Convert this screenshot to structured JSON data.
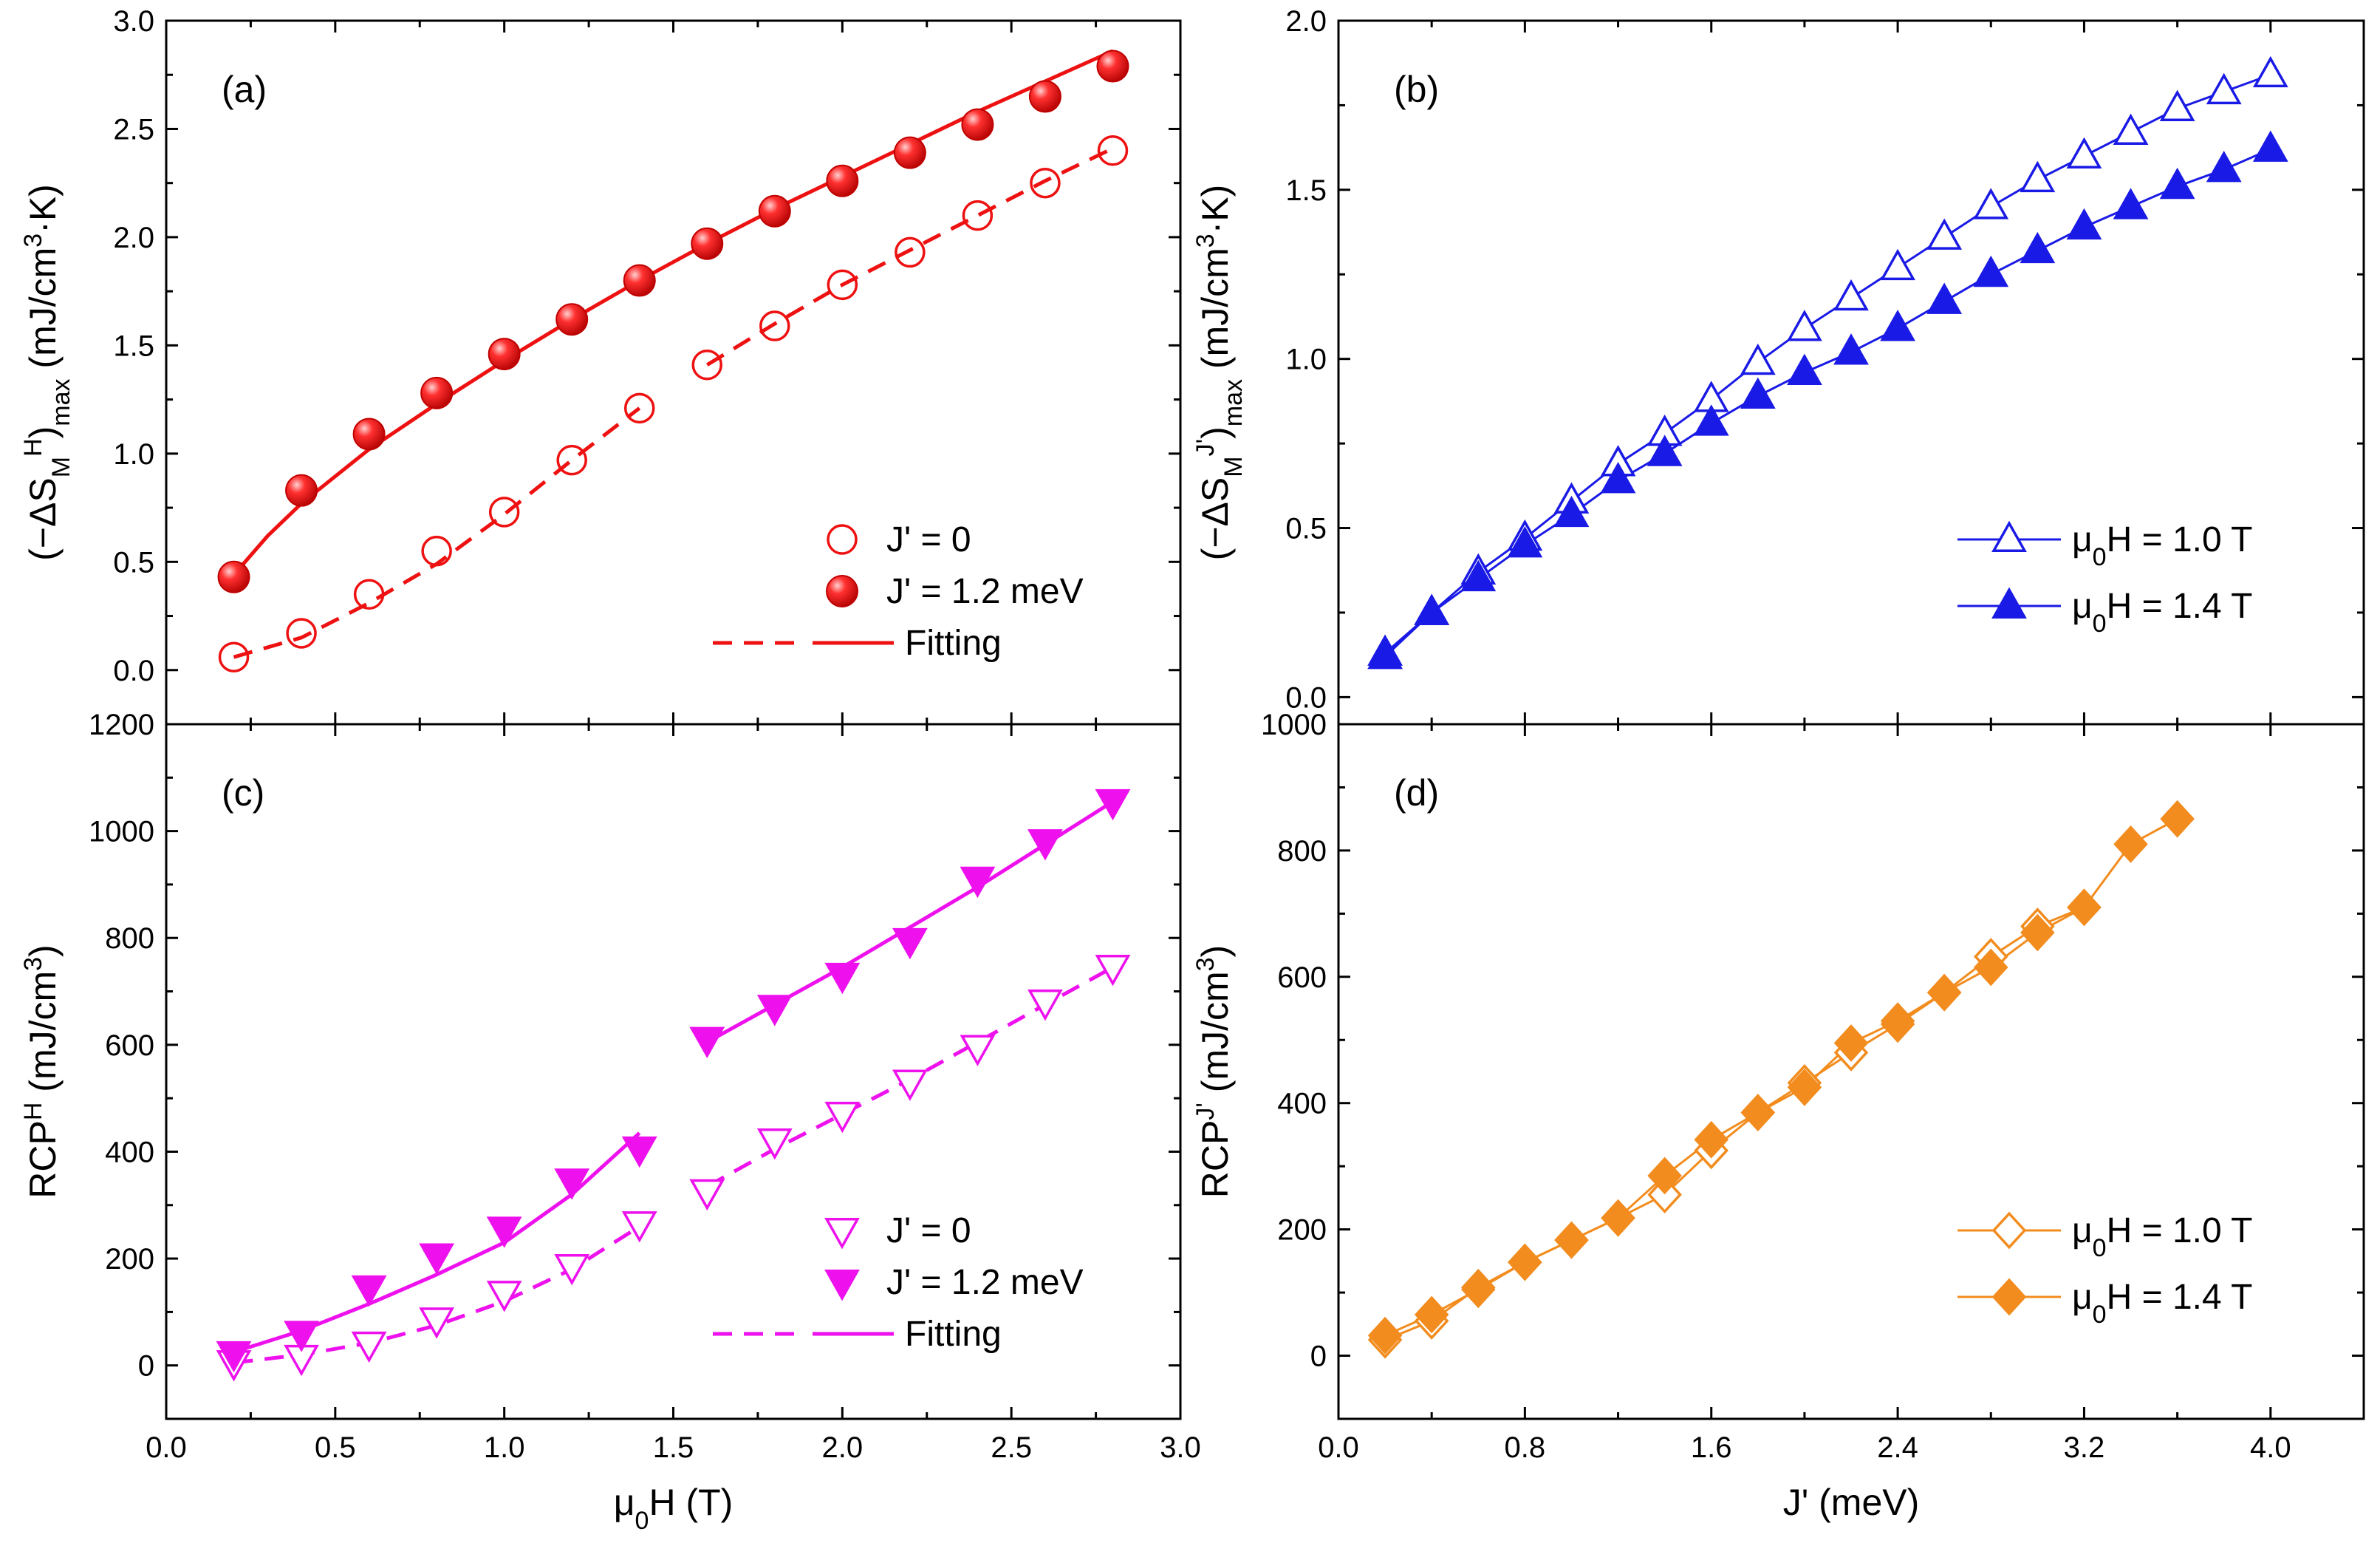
{
  "chart_data": [
    {
      "id": "a",
      "type": "scatter",
      "panel_label": "(a)",
      "ylabel_parts": [
        "(−ΔS",
        "M",
        "H",
        ")",
        "max",
        " (mJ/cm",
        "3",
        "·K)"
      ],
      "xlabel": "",
      "xlim": [
        0,
        3
      ],
      "ylim": [
        -0.25,
        3.0
      ],
      "xticks": [
        "0.0",
        "0.5",
        "1.0",
        "1.5",
        "2.0",
        "2.5",
        "3.0"
      ],
      "yticks": [
        "0.0",
        "0.5",
        "1.0",
        "1.5",
        "2.0",
        "2.5",
        "3.0"
      ],
      "yticks_values": [
        0,
        0.5,
        1.0,
        1.5,
        2.0,
        2.5,
        3.0
      ],
      "color": "#ee1111",
      "series": [
        {
          "name": "J' = 0",
          "marker": "circle-open",
          "x": [
            0.2,
            0.4,
            0.6,
            0.8,
            1.0,
            1.2,
            1.4,
            1.6,
            1.8,
            2.0,
            2.2,
            2.4,
            2.6,
            2.8
          ],
          "y": [
            0.06,
            0.17,
            0.35,
            0.55,
            0.73,
            0.97,
            1.21,
            1.41,
            1.59,
            1.78,
            1.93,
            2.1,
            2.25,
            2.4
          ]
        },
        {
          "name": "J' = 1.2 meV",
          "marker": "sphere",
          "x": [
            0.2,
            0.4,
            0.6,
            0.8,
            1.0,
            1.2,
            1.4,
            1.6,
            1.8,
            2.0,
            2.2,
            2.4,
            2.6,
            2.8
          ],
          "y": [
            0.43,
            0.83,
            1.09,
            1.28,
            1.46,
            1.62,
            1.8,
            1.97,
            2.12,
            2.26,
            2.39,
            2.52,
            2.65,
            2.79
          ]
        }
      ],
      "fits": [
        {
          "style": "dashed",
          "segments": [
            [
              [
                0.2,
                0.06
              ],
              [
                0.4,
                0.15
              ],
              [
                0.6,
                0.31
              ],
              [
                0.8,
                0.49
              ],
              [
                1.0,
                0.72
              ],
              [
                1.2,
                0.97
              ],
              [
                1.4,
                1.21
              ]
            ],
            [
              [
                1.6,
                1.41
              ],
              [
                1.8,
                1.6
              ],
              [
                2.0,
                1.78
              ],
              [
                2.2,
                1.94
              ],
              [
                2.4,
                2.1
              ],
              [
                2.6,
                2.26
              ],
              [
                2.8,
                2.41
              ]
            ]
          ]
        },
        {
          "style": "solid",
          "segments": [
            [
              [
                0.2,
                0.44
              ],
              [
                0.3,
                0.62
              ],
              [
                0.4,
                0.77
              ],
              [
                0.6,
                1.02
              ],
              [
                0.8,
                1.23
              ],
              [
                1.0,
                1.43
              ],
              [
                1.2,
                1.62
              ],
              [
                1.4,
                1.8
              ],
              [
                1.6,
                1.97
              ],
              [
                1.8,
                2.13
              ],
              [
                2.0,
                2.28
              ],
              [
                2.2,
                2.43
              ],
              [
                2.4,
                2.58
              ],
              [
                2.6,
                2.72
              ],
              [
                2.8,
                2.86
              ]
            ]
          ]
        }
      ],
      "legend": [
        {
          "label": "J' = 0",
          "kind": "marker",
          "marker": "circle-open"
        },
        {
          "label": "J' = 1.2 meV",
          "kind": "marker",
          "marker": "sphere"
        },
        {
          "label": "Fitting",
          "kind": "fitpair"
        }
      ]
    },
    {
      "id": "b",
      "type": "line",
      "panel_label": "(b)",
      "ylabel_parts": [
        "(−ΔS",
        "M",
        "J'",
        ")",
        "max",
        " (mJ/cm",
        "3",
        "·K)"
      ],
      "xlabel": "",
      "xlim": [
        0,
        4.4
      ],
      "ylim": [
        -0.08,
        2.0
      ],
      "xticks": [
        "0.0",
        "0.8",
        "1.6",
        "2.4",
        "3.2",
        "4.0"
      ],
      "yticks": [
        "0.0",
        "0.5",
        "1.0",
        "1.5",
        "2.0"
      ],
      "yticks_values": [
        0,
        0.5,
        1.0,
        1.5,
        2.0
      ],
      "color": "#1a1ae6",
      "series": [
        {
          "name": "μ0H = 1.0 T",
          "marker": "triangle-up-open",
          "x": [
            0.2,
            0.4,
            0.6,
            0.8,
            1.0,
            1.2,
            1.4,
            1.6,
            1.8,
            2.0,
            2.2,
            2.4,
            2.6,
            2.8,
            3.0,
            3.2,
            3.4,
            3.6,
            3.8,
            4.0
          ],
          "y": [
            0.13,
            0.25,
            0.37,
            0.47,
            0.58,
            0.69,
            0.78,
            0.88,
            0.99,
            1.09,
            1.18,
            1.27,
            1.36,
            1.45,
            1.53,
            1.6,
            1.67,
            1.74,
            1.79,
            1.84
          ]
        },
        {
          "name": "μ0H = 1.4 T",
          "marker": "triangle-up-filled",
          "x": [
            0.2,
            0.4,
            0.6,
            0.8,
            1.0,
            1.2,
            1.4,
            1.6,
            1.8,
            2.0,
            2.2,
            2.4,
            2.6,
            2.8,
            3.0,
            3.2,
            3.4,
            3.6,
            3.8,
            4.0
          ],
          "y": [
            0.12,
            0.25,
            0.35,
            0.45,
            0.54,
            0.64,
            0.72,
            0.81,
            0.89,
            0.96,
            1.02,
            1.09,
            1.17,
            1.25,
            1.32,
            1.39,
            1.45,
            1.51,
            1.56,
            1.62
          ]
        }
      ],
      "legend": [
        {
          "label_parts": [
            "μ",
            "0",
            "H = 1.0 T"
          ],
          "kind": "line-marker",
          "marker": "triangle-up-open"
        },
        {
          "label_parts": [
            "μ",
            "0",
            "H = 1.4 T"
          ],
          "kind": "line-marker",
          "marker": "triangle-up-filled"
        }
      ]
    },
    {
      "id": "c",
      "type": "scatter",
      "panel_label": "(c)",
      "ylabel_parts": [
        "RCP",
        "H",
        " (mJ/cm",
        "3",
        ")"
      ],
      "xlabel_parts": [
        "μ",
        "0",
        "H (T)"
      ],
      "xlim": [
        0,
        3
      ],
      "ylim": [
        -100,
        1200
      ],
      "xticks": [
        "0.0",
        "0.5",
        "1.0",
        "1.5",
        "2.0",
        "2.5",
        "3.0"
      ],
      "yticks": [
        "0",
        "200",
        "400",
        "600",
        "800",
        "1000",
        "1200"
      ],
      "yticks_values": [
        0,
        200,
        400,
        600,
        800,
        1000,
        1200
      ],
      "color": "#ee11ee",
      "series": [
        {
          "name": "J' = 0",
          "marker": "triangle-down-open",
          "x": [
            0.2,
            0.4,
            0.6,
            0.8,
            1.0,
            1.2,
            1.4,
            1.6,
            1.8,
            2.0,
            2.2,
            2.4,
            2.6,
            2.8
          ],
          "y": [
            5,
            15,
            40,
            85,
            135,
            185,
            265,
            325,
            420,
            470,
            530,
            595,
            680,
            745
          ]
        },
        {
          "name": "J' = 1.2 meV",
          "marker": "triangle-down-filled",
          "x": [
            0.2,
            0.4,
            0.6,
            0.8,
            1.0,
            1.2,
            1.4,
            1.6,
            1.8,
            2.0,
            2.2,
            2.4,
            2.6,
            2.8
          ],
          "y": [
            22,
            60,
            145,
            205,
            255,
            345,
            405,
            610,
            670,
            730,
            795,
            910,
            980,
            1055
          ]
        }
      ],
      "fits": [
        {
          "style": "dashed",
          "segments": [
            [
              [
                0.2,
                5
              ],
              [
                0.4,
                20
              ],
              [
                0.6,
                42
              ],
              [
                0.8,
                75
              ],
              [
                1.0,
                120
              ],
              [
                1.2,
                180
              ],
              [
                1.4,
                260
              ]
            ],
            [
              [
                1.6,
                335
              ],
              [
                1.8,
                405
              ],
              [
                2.0,
                470
              ],
              [
                2.2,
                535
              ],
              [
                2.4,
                605
              ],
              [
                2.6,
                675
              ],
              [
                2.8,
                745
              ]
            ]
          ]
        },
        {
          "style": "solid",
          "segments": [
            [
              [
                0.2,
                25
              ],
              [
                0.4,
                65
              ],
              [
                0.6,
                115
              ],
              [
                0.8,
                170
              ],
              [
                1.0,
                230
              ],
              [
                1.2,
                320
              ],
              [
                1.4,
                435
              ]
            ],
            [
              [
                1.6,
                605
              ],
              [
                1.8,
                675
              ],
              [
                2.0,
                745
              ],
              [
                2.2,
                820
              ],
              [
                2.4,
                895
              ],
              [
                2.6,
                975
              ],
              [
                2.8,
                1055
              ]
            ]
          ]
        }
      ],
      "legend": [
        {
          "label": "J' = 0",
          "kind": "marker",
          "marker": "triangle-down-open"
        },
        {
          "label": "J' = 1.2 meV",
          "kind": "marker",
          "marker": "triangle-down-filled"
        },
        {
          "label": "Fitting",
          "kind": "fitpair"
        }
      ]
    },
    {
      "id": "d",
      "type": "line",
      "panel_label": "(d)",
      "ylabel_parts": [
        "RCP",
        "J'",
        " (mJ/cm",
        "3",
        ")"
      ],
      "xlabel": "J' (meV)",
      "xlim": [
        0,
        4.4
      ],
      "ylim": [
        -100,
        1000
      ],
      "xticks": [
        "0.0",
        "0.8",
        "1.6",
        "2.4",
        "3.2",
        "4.0"
      ],
      "yticks": [
        "0",
        "200",
        "400",
        "600",
        "800",
        "1000"
      ],
      "yticks_values": [
        0,
        200,
        400,
        600,
        800,
        1000
      ],
      "color": "#f28c1e",
      "series": [
        {
          "name": "μ0H = 1.0 T",
          "marker": "diamond-open",
          "x": [
            0.2,
            0.4,
            0.6,
            0.8,
            1.0,
            1.2,
            1.4,
            1.6,
            1.8,
            2.0,
            2.2,
            2.4,
            2.6,
            2.8,
            3.0,
            3.2
          ],
          "y": [
            25,
            55,
            108,
            148,
            183,
            218,
            255,
            325,
            385,
            432,
            480,
            525,
            575,
            632,
            680,
            710
          ]
        },
        {
          "name": "μ0H = 1.4 T",
          "marker": "diamond-filled",
          "x": [
            0.2,
            0.4,
            0.6,
            0.8,
            1.0,
            1.2,
            1.4,
            1.6,
            1.8,
            2.0,
            2.2,
            2.4,
            2.6,
            2.8,
            3.0,
            3.2,
            3.4,
            3.6
          ],
          "y": [
            32,
            65,
            105,
            148,
            183,
            218,
            285,
            342,
            385,
            425,
            495,
            530,
            575,
            615,
            670,
            710,
            810,
            850
          ]
        }
      ],
      "legend": [
        {
          "label_parts": [
            "μ",
            "0",
            "H = 1.0 T"
          ],
          "kind": "line-marker",
          "marker": "diamond-open"
        },
        {
          "label_parts": [
            "μ",
            "0",
            "H = 1.4 T"
          ],
          "kind": "line-marker",
          "marker": "diamond-filled"
        }
      ]
    }
  ]
}
